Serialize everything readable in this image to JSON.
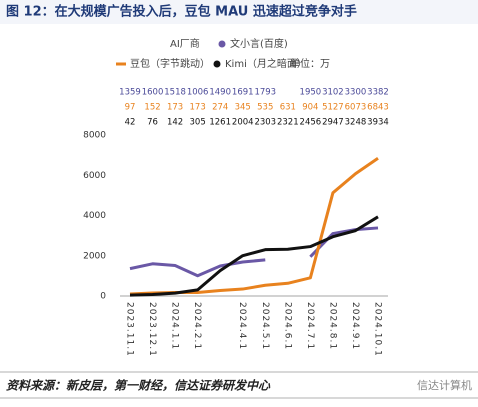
{
  "chart_data": {
    "type": "line",
    "title": "图 12：在大规模广告投入后，豆包 MAU 迅速超过竞争对手",
    "legend_title": "AI厂商",
    "unit": "单位：万",
    "categories": [
      "2023.11.1",
      "2023.12.1",
      "2024.1.1",
      "2024.2.1",
      null,
      "2024.4.1",
      "2024.5.1",
      "2024.6.1",
      "2024.7.1",
      "2024.8.1",
      "2024.9.1",
      "2024.10.1"
    ],
    "series": [
      {
        "name": "文小言(百度)",
        "color": "#6a58a6",
        "values": [
          1359,
          1600,
          1518,
          1006,
          1490,
          1691,
          1793,
          null,
          1950,
          3102,
          3300,
          3382
        ]
      },
      {
        "name": "豆包（字节跳动）",
        "color": "#e8821e",
        "values": [
          97,
          152,
          173,
          173,
          274,
          345,
          535,
          631,
          904,
          5127,
          6073,
          6843
        ]
      },
      {
        "name": "Kimi（月之暗面）",
        "color": "#111111",
        "values": [
          42,
          76,
          142,
          305,
          1261,
          2004,
          2303,
          2321,
          2456,
          2947,
          3248,
          3934
        ]
      }
    ],
    "ylim": [
      0,
      8000
    ],
    "yticks": [
      0,
      2000,
      4000,
      6000,
      8000
    ],
    "grid": false,
    "source": "资料来源：新皮层，第一财经，信达证券研发中心",
    "brand": "信达计算机"
  }
}
